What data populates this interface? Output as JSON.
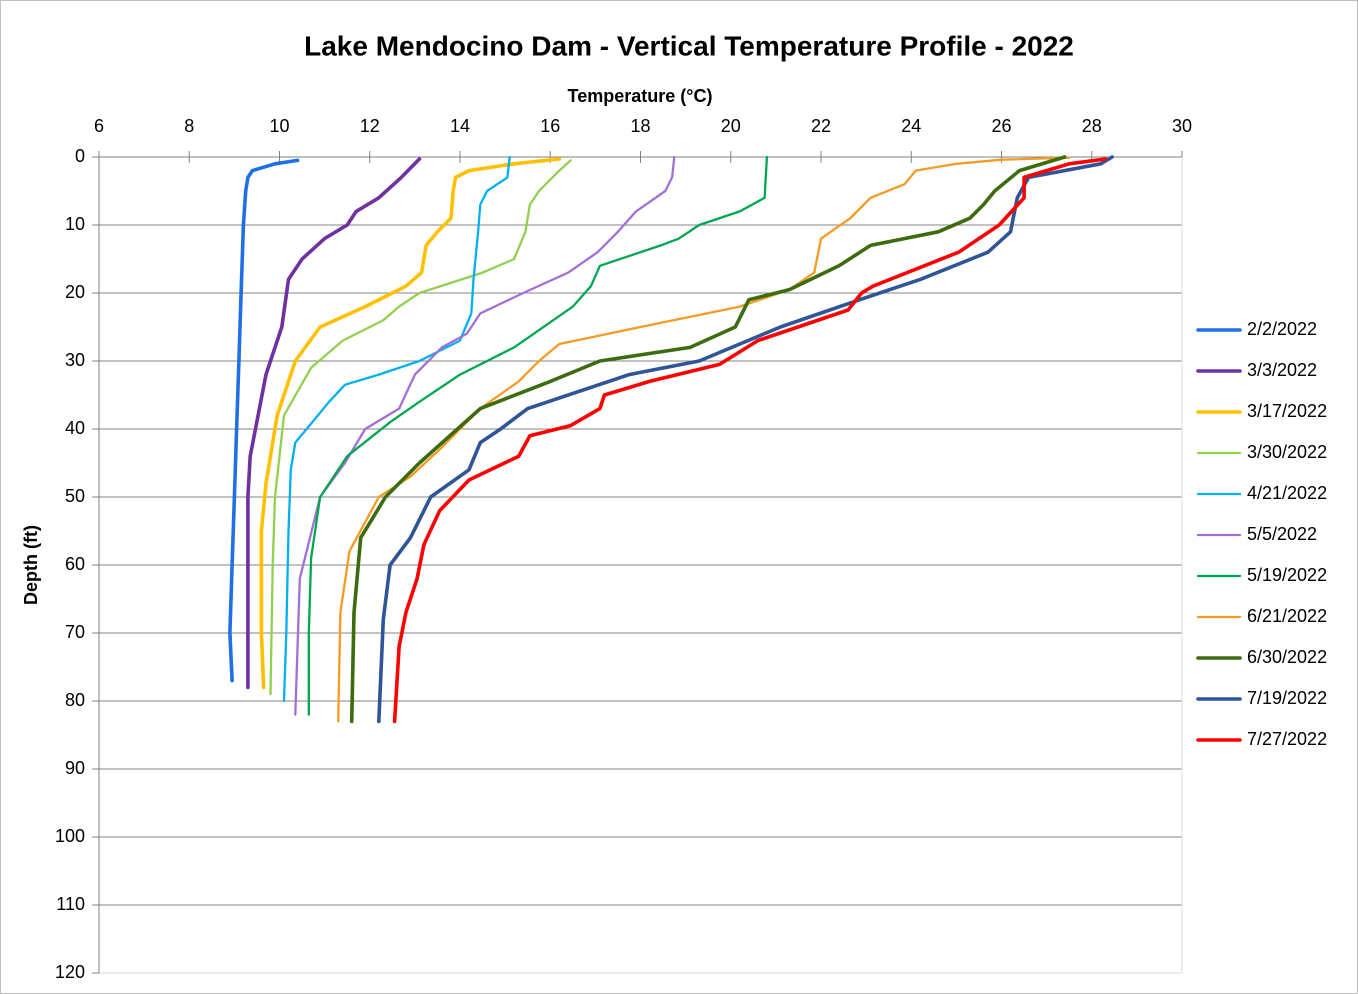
{
  "chart_data": {
    "type": "line",
    "title": "Lake Mendocino Dam - Vertical Temperature Profile - 2022",
    "x_label": "Temperature (°C)",
    "y_label": "Depth (ft)",
    "xlim": [
      6,
      30
    ],
    "xticks": [
      6,
      8,
      10,
      12,
      14,
      16,
      18,
      20,
      22,
      24,
      26,
      28,
      30
    ],
    "ylim": [
      0,
      120
    ],
    "yticks": [
      0,
      10,
      20,
      30,
      40,
      50,
      60,
      70,
      80,
      90,
      100,
      110,
      120
    ],
    "y_reversed": true,
    "x_axis_position": "top",
    "grid": true,
    "legend": "right",
    "series": [
      {
        "name": "2/2/2022",
        "color": "#1f6fe5",
        "x": [
          10.4,
          9.9,
          9.4,
          9.3,
          9.25,
          9.2,
          9.15,
          9.1,
          9.05,
          9.0,
          8.95,
          8.9,
          8.95
        ],
        "y": [
          0.5,
          1,
          2,
          3,
          5,
          10,
          20,
          30,
          40,
          50,
          60,
          70,
          77
        ]
      },
      {
        "name": "3/3/2022",
        "color": "#7030a0",
        "x": [
          13.1,
          12.7,
          12.2,
          11.7,
          11.5,
          11.0,
          10.5,
          10.2,
          10.05,
          9.7,
          9.35,
          9.3,
          9.3,
          9.3,
          9.3
        ],
        "y": [
          0.3,
          3,
          6,
          8,
          10,
          12,
          15,
          18,
          25,
          32,
          44,
          50,
          60,
          70,
          78
        ]
      },
      {
        "name": "3/17/2022",
        "color": "#ffc000",
        "x": [
          16.2,
          15.2,
          14.2,
          13.9,
          13.85,
          13.8,
          13.5,
          13.25,
          13.15,
          12.8,
          11.9,
          10.9,
          10.35,
          9.95,
          9.7,
          9.6,
          9.6,
          9.65
        ],
        "y": [
          0.3,
          1,
          2,
          3,
          5,
          9,
          11,
          13,
          17,
          19,
          22,
          25,
          30,
          38,
          48,
          55,
          70,
          78
        ]
      },
      {
        "name": "3/30/2022",
        "color": "#92d050",
        "x": [
          16.45,
          16.2,
          15.75,
          15.55,
          15.45,
          15.2,
          14.5,
          13.1,
          12.65,
          12.3,
          11.4,
          10.7,
          10.1,
          9.9,
          9.85,
          9.8
        ],
        "y": [
          0.5,
          2,
          5,
          7,
          11,
          15,
          17,
          20,
          22,
          24,
          27,
          31,
          38,
          50,
          60,
          79
        ]
      },
      {
        "name": "4/21/2022",
        "color": "#00b0f0",
        "x": [
          15.1,
          15.05,
          14.6,
          14.45,
          14.4,
          14.3,
          14.25,
          14.0,
          13.1,
          12.2,
          11.45,
          11.1,
          10.35,
          10.25,
          10.2,
          10.15,
          10.1
        ],
        "y": [
          0,
          3,
          5,
          7,
          11,
          18,
          23,
          27,
          30,
          32,
          33.5,
          36,
          42,
          46,
          55,
          70,
          80
        ]
      },
      {
        "name": "5/5/2022",
        "color": "#a270d4",
        "x": [
          18.75,
          18.7,
          18.55,
          17.9,
          17.5,
          17.05,
          16.4,
          15.4,
          14.45,
          14.15,
          13.6,
          13.0,
          12.65,
          11.9,
          11.45,
          10.9,
          10.45,
          10.35
        ],
        "y": [
          0,
          3,
          5,
          8,
          11,
          14,
          17,
          20,
          23,
          26,
          28,
          32,
          37,
          40,
          45,
          50,
          62,
          82
        ]
      },
      {
        "name": "5/19/2022",
        "color": "#00a650",
        "x": [
          20.8,
          20.75,
          20.2,
          19.3,
          18.85,
          18.45,
          17.1,
          16.9,
          16.5,
          15.2,
          14.0,
          13.1,
          12.45,
          11.5,
          10.9,
          10.7,
          10.65,
          10.65
        ],
        "y": [
          0,
          6,
          8,
          10,
          12,
          13,
          16,
          19,
          22,
          28,
          32,
          36,
          39,
          44,
          50,
          59,
          70,
          82
        ]
      },
      {
        "name": "6/21/2022",
        "color": "#f59a23",
        "x": [
          27.5,
          26.0,
          25.0,
          24.1,
          23.85,
          23.1,
          22.65,
          22.0,
          21.85,
          21.3,
          20.2,
          18.0,
          16.2,
          15.75,
          15.3,
          14.45,
          13.55,
          12.9,
          12.2,
          11.55,
          11.35,
          11.3
        ],
        "y": [
          0.1,
          0.4,
          1,
          2,
          4,
          6,
          9,
          12,
          17,
          19.5,
          22,
          25,
          27.5,
          30,
          33,
          37,
          43,
          47,
          50,
          58,
          67,
          83
        ]
      },
      {
        "name": "6/30/2022",
        "color": "#3d6b10",
        "x": [
          27.4,
          26.4,
          25.85,
          25.6,
          25.3,
          24.6,
          23.1,
          22.4,
          21.3,
          20.4,
          20.1,
          19.1,
          17.1,
          16.0,
          14.45,
          13.1,
          12.35,
          11.8,
          11.65,
          11.6
        ],
        "y": [
          0,
          2,
          5,
          7,
          9,
          11,
          13,
          16,
          19.5,
          21,
          25,
          28,
          30,
          33,
          37,
          45,
          50,
          56,
          67,
          83
        ]
      },
      {
        "name": "7/19/2022",
        "color": "#2f5597",
        "x": [
          28.45,
          28.2,
          26.6,
          26.35,
          26.2,
          25.7,
          24.2,
          22.85,
          21.1,
          19.3,
          17.75,
          15.5,
          14.9,
          14.45,
          14.2,
          13.35,
          12.9,
          12.45,
          12.3,
          12.2
        ],
        "y": [
          0,
          1,
          3,
          6,
          11,
          14,
          18,
          21,
          25,
          30,
          32,
          37,
          40,
          42,
          46,
          50,
          56,
          60,
          68,
          83
        ]
      },
      {
        "name": "7/27/2022",
        "color": "#ff0000",
        "x": [
          28.3,
          27.5,
          26.5,
          26.5,
          25.95,
          25.05,
          23.15,
          22.9,
          22.6,
          20.6,
          19.75,
          18.2,
          17.2,
          17.1,
          16.45,
          15.55,
          15.3,
          14.2,
          13.55,
          13.2,
          13.05,
          12.8,
          12.65,
          12.55
        ],
        "y": [
          0.3,
          1,
          3,
          6,
          10,
          14,
          19,
          20,
          22.5,
          27,
          30.5,
          33,
          35,
          37,
          39.5,
          41,
          44,
          47.5,
          52,
          57,
          62,
          67,
          72,
          83
        ]
      }
    ]
  }
}
